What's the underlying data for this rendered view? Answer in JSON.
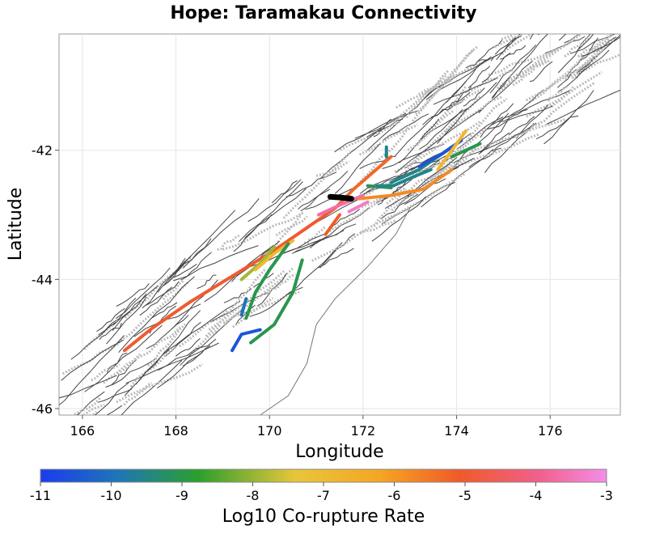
{
  "chart_data": {
    "type": "map",
    "title": "Hope: Taramakau Connectivity",
    "xlabel": "Longitude",
    "ylabel": "Latitude",
    "xlim": [
      165.5,
      177.5
    ],
    "ylim": [
      -46.1,
      -40.2
    ],
    "x_ticks": [
      166,
      168,
      170,
      172,
      174,
      176
    ],
    "y_ticks": [
      -42,
      -44,
      -46
    ],
    "colorbar": {
      "label": "Log10 Co-rupture Rate",
      "range": [
        -11,
        -3
      ],
      "ticks": [
        -11,
        -10,
        -9,
        -8,
        -7,
        -6,
        -5,
        -4,
        -3
      ],
      "colors": [
        "#1a3cf0",
        "#1f77b4",
        "#2ca02c",
        "#e8c53a",
        "#f5a623",
        "#f05a28",
        "#f0608c",
        "#f58de8"
      ]
    },
    "source_fault": {
      "name": "Hope: Taramakau",
      "color": "#000000",
      "points": [
        [
          171.3,
          -42.72
        ],
        [
          171.5,
          -42.73
        ],
        [
          171.75,
          -42.75
        ]
      ]
    },
    "connected_faults": [
      {
        "log10_rate": -5.2,
        "points": [
          [
            166.9,
            -45.1
          ],
          [
            167.5,
            -44.75
          ],
          [
            168.3,
            -44.35
          ],
          [
            169.2,
            -43.95
          ],
          [
            170.1,
            -43.55
          ],
          [
            170.9,
            -43.15
          ],
          [
            171.4,
            -42.9
          ]
        ]
      },
      {
        "log10_rate": -5.5,
        "points": [
          [
            171.4,
            -42.9
          ],
          [
            171.8,
            -42.6
          ],
          [
            172.2,
            -42.35
          ],
          [
            172.6,
            -42.1
          ]
        ]
      },
      {
        "log10_rate": -6.0,
        "points": [
          [
            171.9,
            -42.75
          ],
          [
            172.6,
            -42.7
          ],
          [
            173.3,
            -42.6
          ],
          [
            173.9,
            -42.3
          ]
        ]
      },
      {
        "log10_rate": -9.5,
        "points": [
          [
            172.6,
            -42.5
          ],
          [
            173.2,
            -42.3
          ],
          [
            173.9,
            -41.95
          ]
        ]
      },
      {
        "log10_rate": -10.5,
        "points": [
          [
            173.2,
            -42.25
          ],
          [
            173.7,
            -42.05
          ],
          [
            174.1,
            -41.85
          ]
        ]
      },
      {
        "log10_rate": -9.0,
        "points": [
          [
            173.9,
            -42.1
          ],
          [
            174.5,
            -41.9
          ]
        ]
      },
      {
        "log10_rate": -7.0,
        "points": [
          [
            173.6,
            -42.3
          ],
          [
            174.0,
            -41.9
          ],
          [
            174.2,
            -41.7
          ]
        ]
      },
      {
        "log10_rate": -3.8,
        "points": [
          [
            171.05,
            -43.0
          ],
          [
            171.5,
            -42.85
          ],
          [
            172.0,
            -42.7
          ]
        ]
      },
      {
        "log10_rate": -3.4,
        "points": [
          [
            171.7,
            -42.95
          ],
          [
            172.1,
            -42.8
          ]
        ]
      },
      {
        "log10_rate": -9.0,
        "points": [
          [
            172.1,
            -42.55
          ],
          [
            172.6,
            -42.58
          ]
        ]
      },
      {
        "log10_rate": -8.0,
        "points": [
          [
            169.4,
            -44.0
          ],
          [
            169.8,
            -43.75
          ],
          [
            170.1,
            -43.5
          ]
        ]
      },
      {
        "log10_rate": -7.2,
        "points": [
          [
            169.7,
            -43.85
          ],
          [
            170.1,
            -43.6
          ],
          [
            170.5,
            -43.4
          ]
        ]
      },
      {
        "log10_rate": -9.0,
        "points": [
          [
            169.5,
            -44.6
          ],
          [
            169.7,
            -44.2
          ],
          [
            170.0,
            -43.85
          ],
          [
            170.4,
            -43.45
          ]
        ]
      },
      {
        "log10_rate": -9.0,
        "points": [
          [
            169.6,
            -44.98
          ],
          [
            170.1,
            -44.7
          ],
          [
            170.5,
            -44.2
          ],
          [
            170.7,
            -43.7
          ]
        ]
      },
      {
        "log10_rate": -10.5,
        "points": [
          [
            169.2,
            -45.1
          ],
          [
            169.4,
            -44.85
          ],
          [
            169.8,
            -44.78
          ]
        ]
      },
      {
        "log10_rate": -10.0,
        "points": [
          [
            169.4,
            -44.55
          ],
          [
            169.5,
            -44.3
          ]
        ]
      },
      {
        "log10_rate": -5.3,
        "points": [
          [
            171.2,
            -43.3
          ],
          [
            171.5,
            -43.0
          ]
        ]
      },
      {
        "log10_rate": -9.5,
        "points": [
          [
            172.3,
            -42.55
          ],
          [
            172.65,
            -42.55
          ],
          [
            173.05,
            -42.42
          ],
          [
            173.45,
            -42.3
          ]
        ]
      },
      {
        "log10_rate": -9.5,
        "points": [
          [
            172.5,
            -42.1
          ],
          [
            172.5,
            -41.95
          ]
        ]
      }
    ]
  }
}
